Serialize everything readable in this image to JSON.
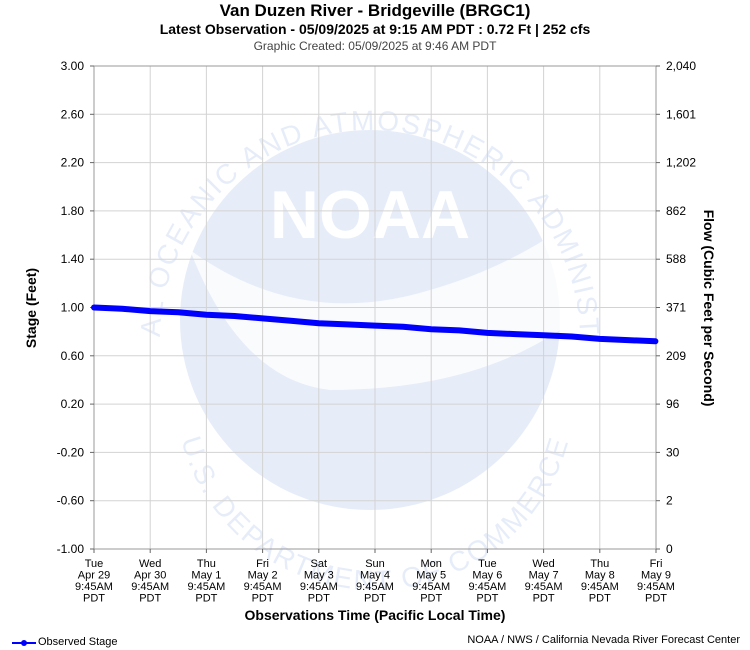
{
  "chart_data": {
    "type": "line",
    "title": "Van Duzen River - Bridgeville (BRGC1)",
    "subtitle": "Latest Observation - 05/09/2025 at 9:15 AM PDT : 0.72 Ft | 252 cfs",
    "caption": "Graphic Created: 05/09/2025 at 9:46 AM PDT",
    "xlabel": "Observations Time (Pacific Local Time)",
    "ylabel": "Stage (Feet)",
    "y2label": "Flow (Cubic Feet per Second)",
    "ylim": [
      -1.0,
      3.0
    ],
    "grid": true,
    "legend_position": "bottom-left",
    "y_ticks": [
      "3.00",
      "2.60",
      "2.20",
      "1.80",
      "1.40",
      "1.00",
      "0.60",
      "0.20",
      "-0.20",
      "-0.60",
      "-1.00"
    ],
    "y2_ticks": [
      "2,040",
      "1,601",
      "1,202",
      "862",
      "588",
      "371",
      "209",
      "96",
      "30",
      "2",
      "0"
    ],
    "x_ticks": [
      {
        "day": "Tue",
        "date": "Apr 29",
        "time": "9:45AM",
        "tz": "PDT"
      },
      {
        "day": "Wed",
        "date": "Apr 30",
        "time": "9:45AM",
        "tz": "PDT"
      },
      {
        "day": "Thu",
        "date": "May 1",
        "time": "9:45AM",
        "tz": "PDT"
      },
      {
        "day": "Fri",
        "date": "May 2",
        "time": "9:45AM",
        "tz": "PDT"
      },
      {
        "day": "Sat",
        "date": "May 3",
        "time": "9:45AM",
        "tz": "PDT"
      },
      {
        "day": "Sun",
        "date": "May 4",
        "time": "9:45AM",
        "tz": "PDT"
      },
      {
        "day": "Mon",
        "date": "May 5",
        "time": "9:45AM",
        "tz": "PDT"
      },
      {
        "day": "Tue",
        "date": "May 6",
        "time": "9:45AM",
        "tz": "PDT"
      },
      {
        "day": "Wed",
        "date": "May 7",
        "time": "9:45AM",
        "tz": "PDT"
      },
      {
        "day": "Thu",
        "date": "May 8",
        "time": "9:45AM",
        "tz": "PDT"
      },
      {
        "day": "Fri",
        "date": "May 9",
        "time": "9:45AM",
        "tz": "PDT"
      }
    ],
    "series": [
      {
        "name": "Observed Stage",
        "color": "#0000ff",
        "x_days_from_first_tick": [
          0,
          0.5,
          1,
          1.5,
          2,
          2.5,
          3,
          3.5,
          4,
          4.5,
          5,
          5.5,
          6,
          6.5,
          7,
          7.5,
          8,
          8.5,
          9,
          9.5,
          9.99
        ],
        "y": [
          1.0,
          0.99,
          0.97,
          0.96,
          0.94,
          0.93,
          0.91,
          0.89,
          0.87,
          0.86,
          0.85,
          0.84,
          0.82,
          0.81,
          0.79,
          0.78,
          0.77,
          0.76,
          0.74,
          0.73,
          0.72
        ]
      }
    ]
  },
  "footer": {
    "legend_label": "Observed Stage",
    "credit": "NOAA / NWS / California Nevada River Forecast Center"
  },
  "watermark": {
    "ring_text": "NATIONAL OCEANIC AND ATMOSPHERIC ADMINISTRATION",
    "bottom_text": "U.S. DEPARTMENT OF COMMERCE",
    "center_text": "NOAA"
  }
}
